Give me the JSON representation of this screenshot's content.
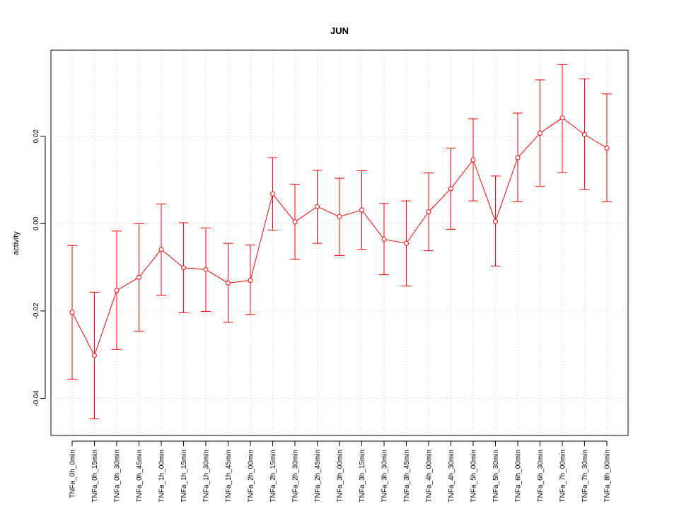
{
  "chart_data": {
    "type": "line",
    "title": "JUN",
    "xlabel": "",
    "ylabel": "activity",
    "ylim": [
      -0.0485,
      0.0397
    ],
    "yticks": [
      -0.04,
      -0.02,
      0.0,
      0.02
    ],
    "ytick_labels": [
      "-0.04",
      "-0.02",
      "0.00",
      "0.02"
    ],
    "grid": true,
    "categories": [
      "TNFa_0h_0min",
      "TNFa_0h_15min",
      "TNFa_0h_30min",
      "TNFa_0h_45min",
      "TNFa_1h_00min",
      "TNFa_1h_15min",
      "TNFa_1h_30min",
      "TNFa_1h_45min",
      "TNFa_2h_00min",
      "TNFa_2h_15min",
      "TNFa_2h_30min",
      "TNFa_2h_45min",
      "TNFa_3h_00min",
      "TNFa_3h_15min",
      "TNFa_3h_30min",
      "TNFa_3h_45min",
      "TNFa_4h_00min",
      "TNFa_4h_30min",
      "TNFa_5h_00min",
      "TNFa_5h_30min",
      "TNFa_6h_00min",
      "TNFa_6h_30min",
      "TNFa_7h_00min",
      "TNFa_7h_30min",
      "TNFa_8h_00min"
    ],
    "series": [
      {
        "color": "#ff0000",
        "values": [
          -0.0203,
          -0.0302,
          -0.0153,
          -0.0123,
          -0.0059,
          -0.0101,
          -0.0105,
          -0.0136,
          -0.013,
          0.0068,
          0.0004,
          0.0039,
          0.0016,
          0.0031,
          -0.0036,
          -0.0045,
          0.0027,
          0.008,
          0.0146,
          0.0005,
          0.0151,
          0.0207,
          0.0242,
          0.0204,
          0.0173
        ],
        "upper": [
          -0.005,
          -0.0157,
          -0.0017,
          0.0,
          0.0045,
          0.0002,
          -0.001,
          -0.0045,
          -0.0049,
          0.0151,
          0.009,
          0.0122,
          0.0104,
          0.0121,
          0.0046,
          0.0052,
          0.0116,
          0.0173,
          0.024,
          0.0109,
          0.0253,
          0.0329,
          0.0364,
          0.0331,
          0.0297
        ],
        "lower": [
          -0.0356,
          -0.0447,
          -0.0288,
          -0.0246,
          -0.0164,
          -0.0204,
          -0.0201,
          -0.0226,
          -0.0208,
          -0.0015,
          -0.0082,
          -0.0045,
          -0.0073,
          -0.0059,
          -0.0117,
          -0.0143,
          -0.0062,
          -0.0013,
          0.0052,
          -0.0097,
          0.005,
          0.0085,
          0.0117,
          0.0078,
          0.005
        ]
      }
    ]
  }
}
